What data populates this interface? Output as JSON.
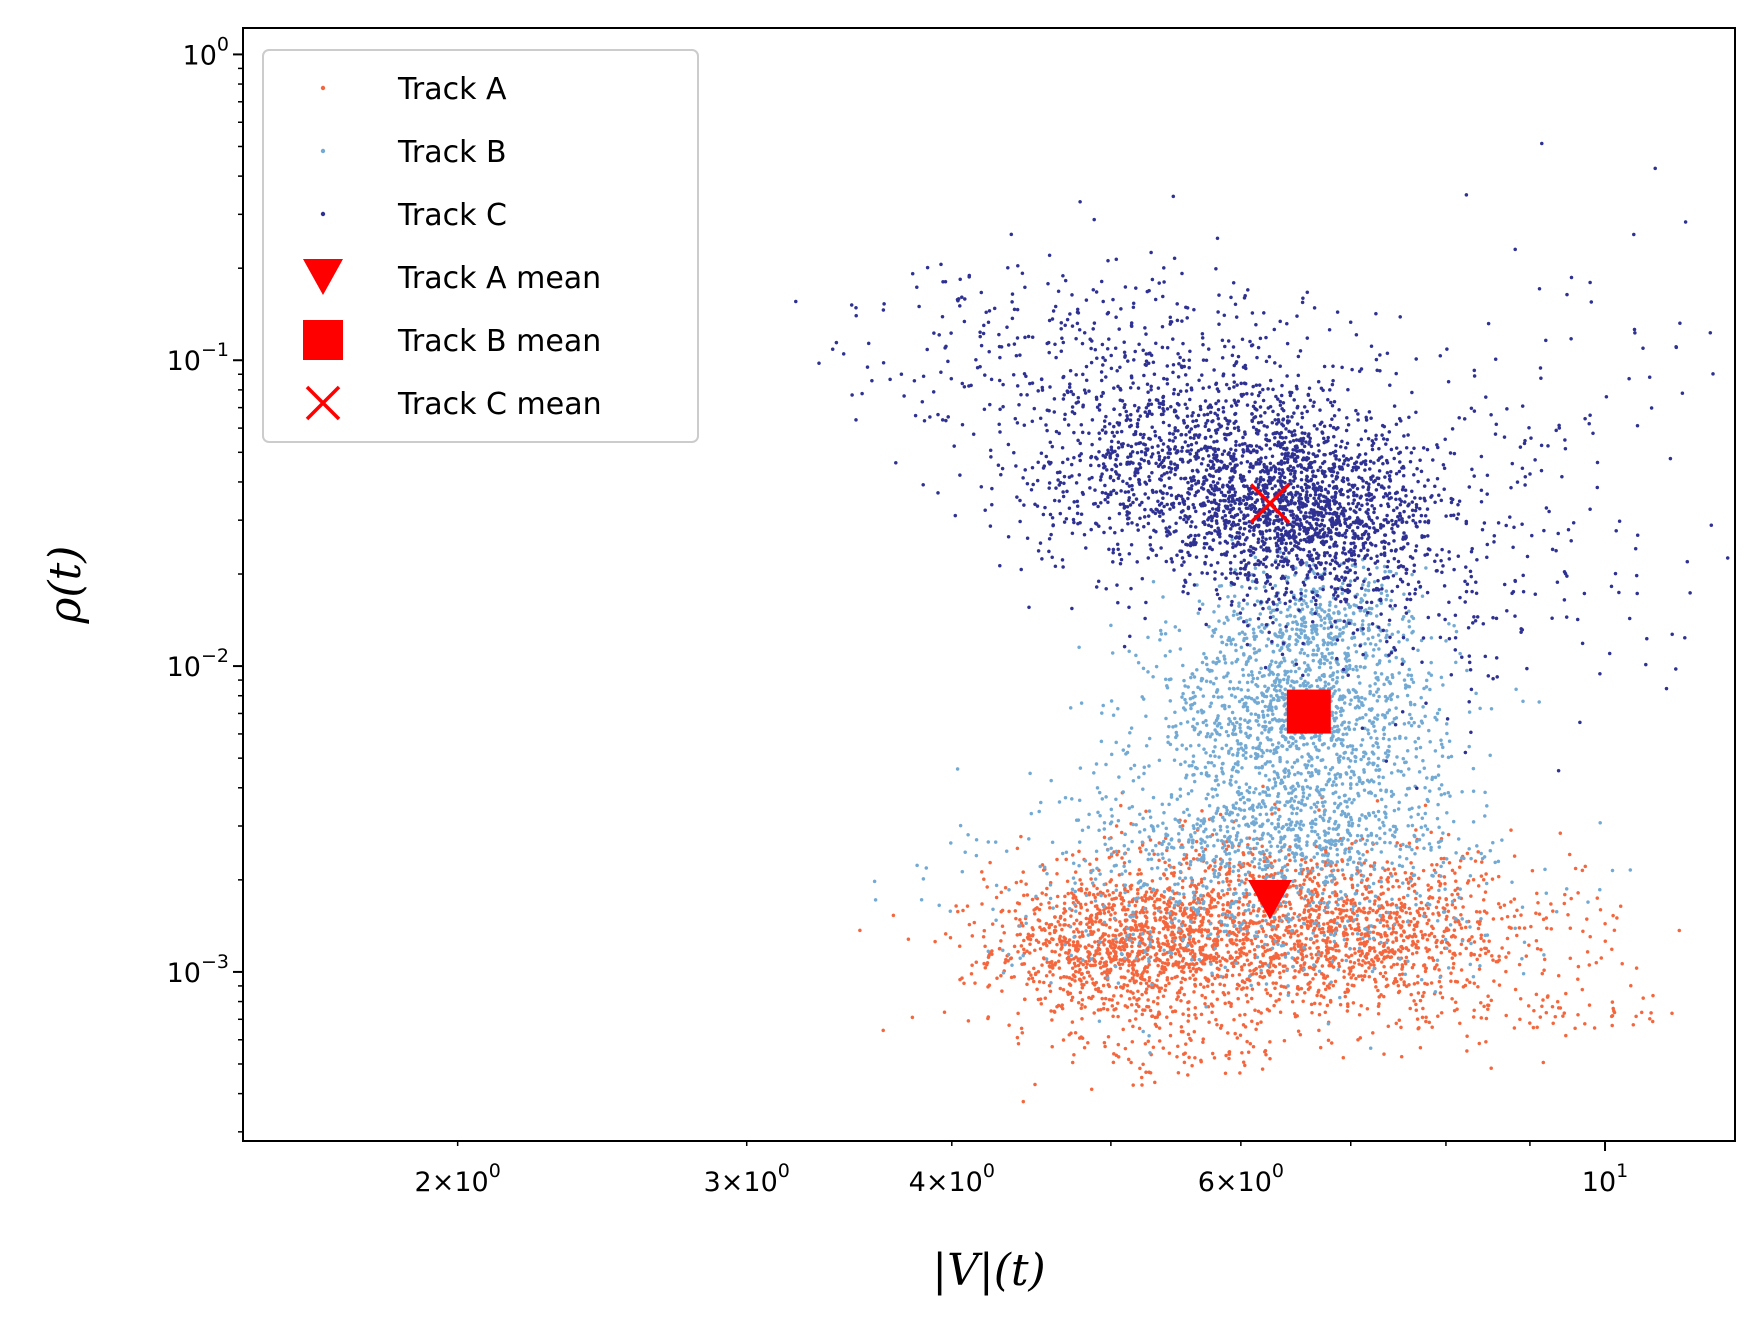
{
  "chart_data": {
    "type": "scatter",
    "xscale": "log",
    "yscale": "log",
    "xlabel": "|V|(t)",
    "ylabel": "ρ(t)",
    "xlim": [
      1.48,
      12.0
    ],
    "ylim": [
      0.00028,
      1.22
    ],
    "x_ticks": [
      {
        "value": 2,
        "mantissa": "2",
        "exp": "0"
      },
      {
        "value": 3,
        "mantissa": "3",
        "exp": "0"
      },
      {
        "value": 4,
        "mantissa": "4",
        "exp": "0"
      },
      {
        "value": 6,
        "mantissa": "6",
        "exp": "0"
      },
      {
        "value": 10,
        "mantissa": "",
        "exp": "1"
      }
    ],
    "y_ticks": [
      {
        "value": 1,
        "exp": "0"
      },
      {
        "value": 0.1,
        "exp": "−1"
      },
      {
        "value": 0.01,
        "exp": "−2"
      },
      {
        "value": 0.001,
        "exp": "−3"
      }
    ],
    "legend_position": "upper-left",
    "series": [
      {
        "name": "Track A",
        "color": "#f4673e",
        "marker": "dot",
        "clusters": [
          {
            "x": 5.1,
            "y": 0.0012,
            "sx": 0.04,
            "sy": 0.12,
            "n": 900
          },
          {
            "x": 6.1,
            "y": 0.0014,
            "sx": 0.07,
            "sy": 0.16,
            "n": 1300
          },
          {
            "x": 7.3,
            "y": 0.0013,
            "sx": 0.06,
            "sy": 0.12,
            "n": 700
          },
          {
            "x": 5.4,
            "y": 0.00055,
            "sx": 0.04,
            "sy": 0.06,
            "n": 80
          },
          {
            "x": 9.3,
            "y": 0.00072,
            "sx": 0.04,
            "sy": 0.04,
            "n": 60
          }
        ]
      },
      {
        "name": "Track B",
        "color": "#73aad3",
        "marker": "dot",
        "clusters": [
          {
            "x": 6.5,
            "y": 0.0065,
            "sx": 0.045,
            "sy": 0.2,
            "n": 1500
          },
          {
            "x": 6.3,
            "y": 0.0028,
            "sx": 0.06,
            "sy": 0.1,
            "n": 500
          },
          {
            "x": 6.0,
            "y": 0.0017,
            "sx": 0.08,
            "sy": 0.14,
            "n": 500
          },
          {
            "x": 6.7,
            "y": 0.014,
            "sx": 0.03,
            "sy": 0.1,
            "n": 300
          }
        ]
      },
      {
        "name": "Track C",
        "color": "#2e3192",
        "marker": "dot",
        "clusters": [
          {
            "x": 5.8,
            "y": 0.045,
            "sx": 0.06,
            "sy": 0.18,
            "n": 1500
          },
          {
            "x": 6.6,
            "y": 0.03,
            "sx": 0.04,
            "sy": 0.14,
            "n": 1200
          },
          {
            "x": 4.8,
            "y": 0.12,
            "sx": 0.07,
            "sy": 0.14,
            "n": 300
          },
          {
            "x": 8.0,
            "y": 0.02,
            "sx": 0.06,
            "sy": 0.25,
            "n": 250
          },
          {
            "x": 9.8,
            "y": 0.06,
            "sx": 0.05,
            "sy": 0.4,
            "n": 60
          }
        ]
      }
    ],
    "means": [
      {
        "name": "Track A mean",
        "x": 6.25,
        "y": 0.00175,
        "marker": "triangle-down",
        "color": "#ff0000"
      },
      {
        "name": "Track B mean",
        "x": 6.6,
        "y": 0.0071,
        "marker": "square",
        "color": "#ff0000"
      },
      {
        "name": "Track C mean",
        "x": 6.25,
        "y": 0.034,
        "marker": "x",
        "color": "#ff0000"
      }
    ]
  }
}
